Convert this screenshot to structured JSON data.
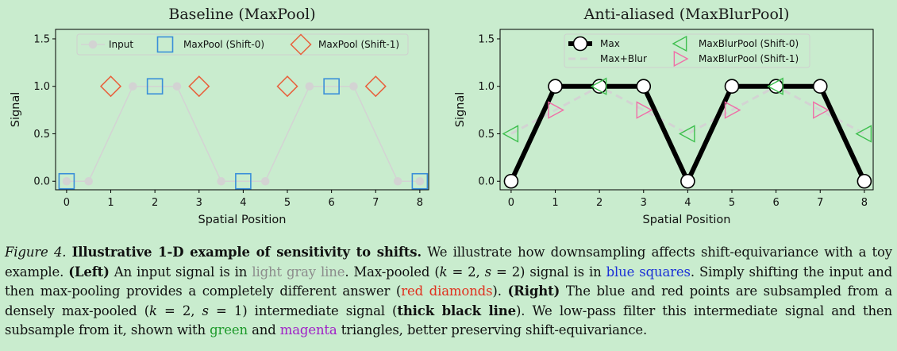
{
  "chart_data": [
    {
      "type": "line",
      "title": "Baseline (MaxPool)",
      "xlabel": "Spatial Position",
      "ylabel": "Signal",
      "xlim": [
        -0.25,
        8.2
      ],
      "ylim": [
        -0.09,
        1.6
      ],
      "xticks": [
        "0",
        "1",
        "2",
        "3",
        "4",
        "5",
        "6",
        "7",
        "8"
      ],
      "yticks": [
        "0.0",
        "0.5",
        "1.0",
        "1.5"
      ],
      "legend_position": "top",
      "series": [
        {
          "name": "Input",
          "marker": "circle",
          "color": "#d3d3d3",
          "x": [
            0,
            0.5,
            1.5,
            2.5,
            3.5,
            4.5,
            5.5,
            6.5,
            7.5,
            8
          ],
          "y": [
            0,
            0,
            1,
            1,
            0,
            0,
            1,
            1,
            0,
            0
          ]
        },
        {
          "name": "MaxPool (Shift-0)",
          "marker": "square",
          "color": "#3a8fd9",
          "x": [
            0,
            2,
            4,
            6,
            8
          ],
          "y": [
            0,
            1,
            0,
            1,
            0
          ]
        },
        {
          "name": "MaxPool (Shift-1)",
          "marker": "diamond",
          "color": "#e8603c",
          "x": [
            1,
            3,
            5,
            7
          ],
          "y": [
            1,
            1,
            1,
            1
          ]
        }
      ]
    },
    {
      "type": "line",
      "title": "Anti-aliased (MaxBlurPool)",
      "xlabel": "Spatial Position",
      "ylabel": "Signal",
      "xlim": [
        -0.25,
        8.2
      ],
      "ylim": [
        -0.09,
        1.6
      ],
      "xticks": [
        "0",
        "1",
        "2",
        "3",
        "4",
        "5",
        "6",
        "7",
        "8"
      ],
      "yticks": [
        "0.0",
        "0.5",
        "1.0",
        "1.5"
      ],
      "legend_position": "top",
      "series": [
        {
          "name": "Max",
          "marker": "circle",
          "color": "#000000",
          "x": [
            0,
            1,
            2,
            3,
            4,
            5,
            6,
            7,
            8
          ],
          "y": [
            0,
            1,
            1,
            1,
            0,
            1,
            1,
            1,
            0
          ]
        },
        {
          "name": "Max+Blur",
          "marker": "none",
          "color": "#d3d3d3",
          "x": [
            0,
            1,
            2,
            3,
            4,
            5,
            6,
            7,
            8
          ],
          "y": [
            0.5,
            0.75,
            1,
            0.75,
            0.5,
            0.75,
            1,
            0.75,
            0.5
          ]
        },
        {
          "name": "MaxBlurPool (Shift-0)",
          "marker": "triangle-left",
          "color": "#3fbf4f",
          "x": [
            0,
            2,
            4,
            6,
            8
          ],
          "y": [
            0.5,
            1,
            0.5,
            1,
            0.5
          ]
        },
        {
          "name": "MaxBlurPool (Shift-1)",
          "marker": "triangle-right",
          "color": "#f06ea8",
          "x": [
            1,
            3,
            5,
            7
          ],
          "y": [
            0.75,
            0.75,
            0.75,
            0.75
          ]
        }
      ]
    }
  ],
  "caption": {
    "label": "Figure 4.",
    "bold_title": "Illustrative 1-D example of sensitivity to shifts.",
    "t1": " We illustrate how downsampling affects shift-equivariance with a toy example. ",
    "left_tag": "(Left)",
    "t2": " An input signal is in ",
    "light_gray_line": "light gray line",
    "t3": ". Max-pooled (",
    "k1": "k",
    "eq1": " = 2, ",
    "s1": "s",
    "eq2": " = 2) signal is in ",
    "blue_squares": "blue squares",
    "t4": ". Simply shifting the input and then max-pooling provides a completely different answer (",
    "red_diamonds": "red diamonds",
    "t5": "). ",
    "right_tag": "(Right)",
    "t6": " The blue and red points are subsampled from a densely max-pooled (",
    "k2": "k",
    "eq3": " = 2, ",
    "s2": "s",
    "eq4": " = 1) intermediate signal (",
    "thick_black_line": "thick black line",
    "t7": "). We low-pass filter this intermediate signal and then subsample from it, shown with ",
    "green": "green",
    "t8": " and ",
    "magenta": "magenta",
    "t9": " triangles, better preserving shift-equivariance."
  }
}
